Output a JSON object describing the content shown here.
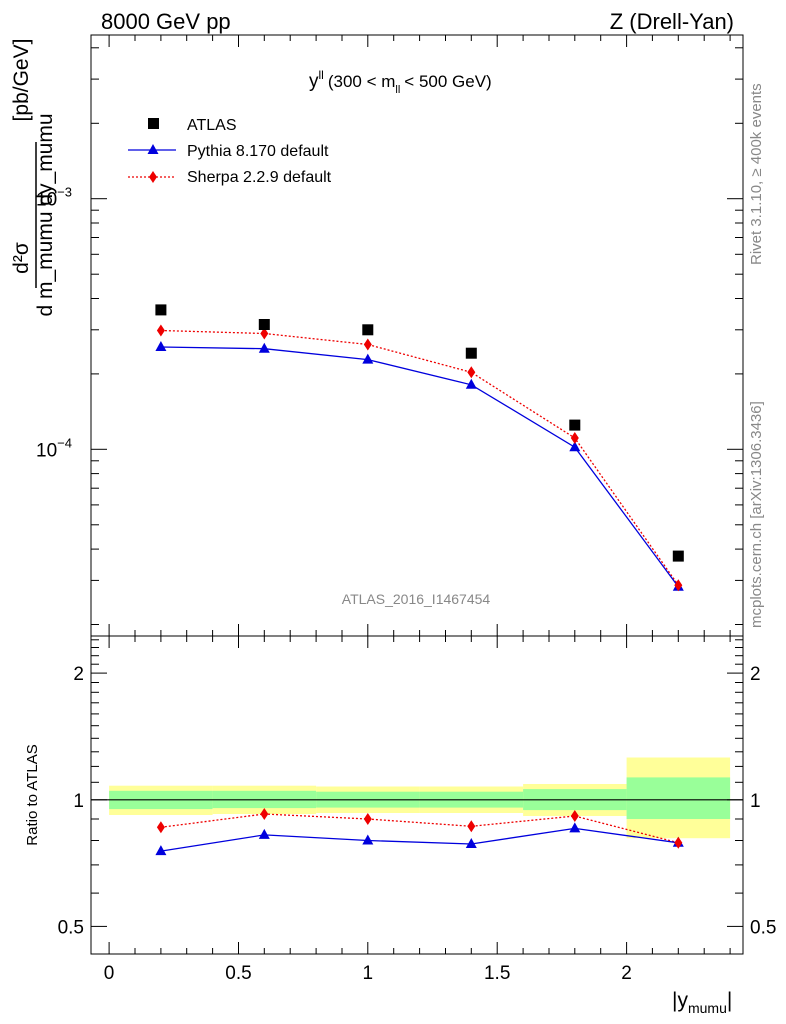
{
  "header": {
    "left": "8000 GeV pp",
    "right": "Z (Drell-Yan)"
  },
  "side": {
    "top": "Rivet 3.1.10, ≥ 400k events",
    "bottom": "mcplots.cern.ch [arXiv:1306.3436]"
  },
  "watermark": "ATLAS_2016_I1467454",
  "colors": {
    "atlas": "#000000",
    "pythia": "#0000dd",
    "sherpa": "#ee0000",
    "band_inner": "#99ff99",
    "band_outer": "#ffff99"
  },
  "chart_data": [
    {
      "type": "scatter",
      "title": "y^ll (300 < m_ll < 500 GeV)",
      "title_parts": {
        "var": "y",
        "var_sup": "ll",
        "pre": "(300 < m",
        "sub": "ll",
        "post": "< 500 GeV)"
      },
      "ylabel": {
        "num": "d²σ",
        "den": "d m_mumu dy_mumu",
        "unit": "[pb/GeV]"
      },
      "yscale": "log",
      "ylim": [
        1.8e-05,
        0.0045
      ],
      "xlim": [
        -0.07,
        2.45
      ],
      "yticks": [
        {
          "value": 0.0001,
          "base": "10",
          "exp": "−4"
        },
        {
          "value": 0.001,
          "base": "10",
          "exp": "−3"
        }
      ],
      "legend": {
        "position": "top-left",
        "entries": [
          "ATLAS",
          "Pythia 8.170 default",
          "Sherpa 2.2.9 default"
        ]
      },
      "x": [
        0.2,
        0.6,
        1.0,
        1.4,
        1.8,
        2.2
      ],
      "series": [
        {
          "name": "ATLAS",
          "marker": "square",
          "values": [
            0.00036,
            0.000315,
            0.0003,
            0.000242,
            0.000125,
            3.75e-05
          ]
        },
        {
          "name": "Pythia 8.170 default",
          "marker": "triangle",
          "line": "solid",
          "values": [
            0.000256,
            0.000252,
            0.000228,
            0.000181,
            0.000102,
            2.83e-05
          ]
        },
        {
          "name": "Sherpa 2.2.9 default",
          "marker": "diamond",
          "line": "dotted",
          "values": [
            0.000298,
            0.00029,
            0.000262,
            0.000203,
            0.000111,
            2.87e-05
          ]
        }
      ]
    },
    {
      "type": "line",
      "title": "Ratio to ATLAS",
      "ylabel": "Ratio to ATLAS",
      "xlabel": {
        "main": "|y",
        "sub": "mumu",
        "end": "|"
      },
      "yscale": "log",
      "ylim": [
        0.43,
        2.45
      ],
      "xlim": [
        -0.07,
        2.45
      ],
      "xticks": [
        {
          "value": 0,
          "label": "0"
        },
        {
          "value": 0.5,
          "label": "0.5"
        },
        {
          "value": 1,
          "label": "1"
        },
        {
          "value": 1.5,
          "label": "1.5"
        },
        {
          "value": 2,
          "label": "2"
        }
      ],
      "yticks": [
        {
          "value": 0.5,
          "label": "0.5"
        },
        {
          "value": 1,
          "label": "1"
        },
        {
          "value": 2,
          "label": "2"
        }
      ],
      "bins": [
        [
          0,
          0.4
        ],
        [
          0.4,
          0.8
        ],
        [
          0.8,
          1.2
        ],
        [
          1.2,
          1.6
        ],
        [
          1.6,
          2.0
        ],
        [
          2.0,
          2.4
        ]
      ],
      "band_inner": [
        [
          0.95,
          1.05
        ],
        [
          0.955,
          1.05
        ],
        [
          0.958,
          1.045
        ],
        [
          0.958,
          1.045
        ],
        [
          0.945,
          1.06
        ],
        [
          0.9,
          1.13
        ]
      ],
      "band_outer": [
        [
          0.92,
          1.08
        ],
        [
          0.925,
          1.08
        ],
        [
          0.93,
          1.075
        ],
        [
          0.93,
          1.075
        ],
        [
          0.915,
          1.09
        ],
        [
          0.81,
          1.26
        ]
      ],
      "x": [
        0.2,
        0.6,
        1.0,
        1.4,
        1.8,
        2.2
      ],
      "series": [
        {
          "name": "Pythia 8.170 default",
          "marker": "triangle",
          "line": "solid",
          "values": [
            0.755,
            0.825,
            0.8,
            0.785,
            0.855,
            0.79
          ]
        },
        {
          "name": "Sherpa 2.2.9 default",
          "marker": "diamond",
          "line": "dotted",
          "values": [
            0.86,
            0.925,
            0.9,
            0.865,
            0.915,
            0.79
          ]
        }
      ]
    }
  ]
}
